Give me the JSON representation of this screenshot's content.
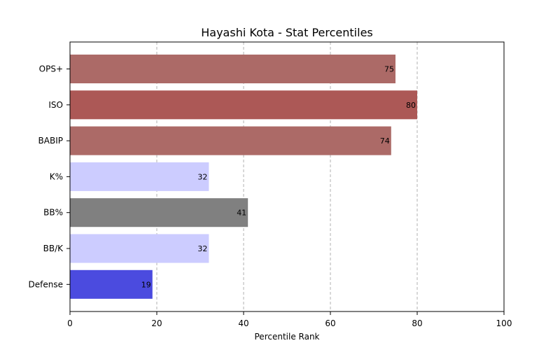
{
  "chart_data": {
    "type": "bar",
    "orientation": "horizontal",
    "title": "Hayashi Kota - Stat Percentiles",
    "xlabel": "Percentile Rank",
    "ylabel": "",
    "xlim": [
      0,
      100
    ],
    "xticks": [
      "0",
      "20",
      "40",
      "60",
      "80",
      "100"
    ],
    "grid": "x-dashed",
    "categories": [
      "OPS+",
      "ISO",
      "BABIP",
      "K%",
      "BB%",
      "BB/K",
      "Defense"
    ],
    "values": [
      75,
      80,
      74,
      32,
      41,
      32,
      19
    ],
    "colors": [
      "#ac6a67",
      "#ac5856",
      "#ac6a67",
      "#ccccff",
      "#808080",
      "#ccccff",
      "#4b4bdf"
    ]
  }
}
